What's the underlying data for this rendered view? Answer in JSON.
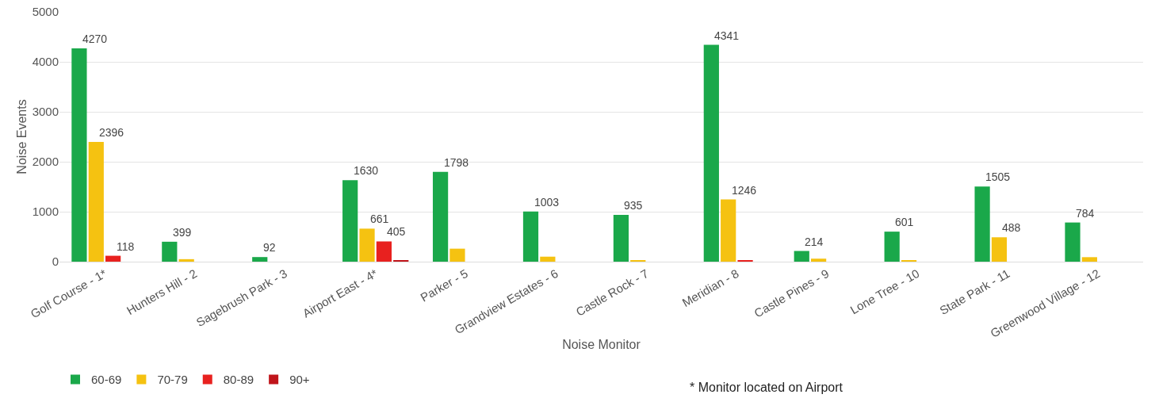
{
  "chart_data": {
    "type": "bar",
    "xlabel": "Noise Monitor",
    "ylabel": "Noise Events",
    "categories": [
      "Golf Course - 1*",
      "Hunters Hill - 2",
      "Sagebrush Park - 3",
      "Airport East - 4*",
      "Parker - 5",
      "Grandview Estates - 6",
      "Castle Rock - 7",
      "Meridian - 8",
      "Castle Pines - 9",
      "Lone Tree - 10",
      "State Park - 11",
      "Greenwood Village - 12"
    ],
    "series": [
      {
        "name": "60-69",
        "color": "#1aa84a",
        "values": [
          4270,
          399,
          92,
          1630,
          1798,
          1003,
          935,
          4341,
          214,
          601,
          1505,
          784
        ],
        "value_labels": [
          "4270",
          "399",
          "92",
          "1630",
          "1798",
          "1003",
          "935",
          "4341",
          "214",
          "601",
          "1505",
          "784"
        ]
      },
      {
        "name": "70-79",
        "color": "#f5c211",
        "values": [
          2396,
          50,
          null,
          661,
          260,
          100,
          30,
          1246,
          60,
          30,
          488,
          90
        ],
        "value_labels": [
          "2396",
          null,
          null,
          "661",
          null,
          null,
          null,
          "1246",
          null,
          null,
          "488",
          null
        ]
      },
      {
        "name": "80-89",
        "color": "#e8211f",
        "values": [
          118,
          null,
          null,
          405,
          null,
          null,
          null,
          20,
          null,
          null,
          null,
          null
        ],
        "value_labels": [
          "118",
          null,
          null,
          "405",
          null,
          null,
          null,
          null,
          null,
          null,
          null,
          null
        ]
      },
      {
        "name": "90+",
        "color": "#c0151b",
        "values": [
          null,
          null,
          null,
          30,
          null,
          null,
          null,
          null,
          null,
          null,
          null,
          null
        ],
        "value_labels": [
          null,
          null,
          null,
          null,
          null,
          null,
          null,
          null,
          null,
          null,
          null,
          null
        ]
      }
    ],
    "ylim": [
      0,
      5000
    ],
    "yticks": [
      0,
      1000,
      2000,
      3000,
      4000,
      5000
    ],
    "grid": "y",
    "legend": "bottom left",
    "annotations": [
      "* Monitor located on Airport"
    ]
  }
}
